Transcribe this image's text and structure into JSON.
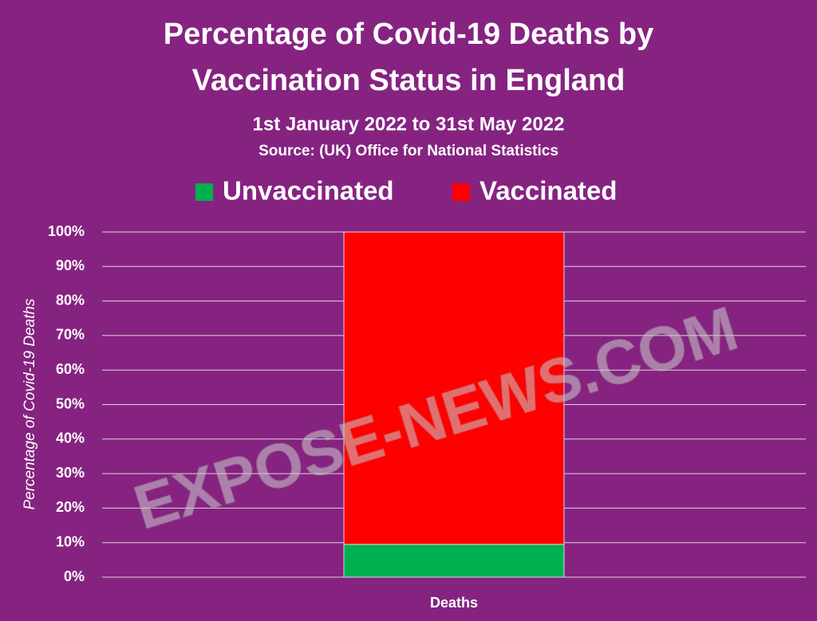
{
  "chart_data": {
    "type": "stacked-bar",
    "title": [
      "Percentage of Covid-19 Deaths by",
      "Vaccination Status in England"
    ],
    "subtitle": "1st January 2022 to 31st May 2022",
    "source": "Source:  (UK) Office for National Statistics",
    "y_label": "Percentage of Covid-19 Deaths",
    "categories": [
      "Deaths"
    ],
    "series": [
      {
        "name": "Unvaccinated",
        "color": "#00b050",
        "values": [
          9.5
        ]
      },
      {
        "name": "Vaccinated",
        "color": "#ff0000",
        "values": [
          90.5
        ]
      }
    ],
    "ylim": [
      0,
      100
    ],
    "yticks": [
      {
        "value": 0,
        "label": "0%"
      },
      {
        "value": 10,
        "label": "10%"
      },
      {
        "value": 20,
        "label": "20%"
      },
      {
        "value": 30,
        "label": "30%"
      },
      {
        "value": 40,
        "label": "40%"
      },
      {
        "value": 50,
        "label": "50%"
      },
      {
        "value": 60,
        "label": "60%"
      },
      {
        "value": 70,
        "label": "70%"
      },
      {
        "value": 80,
        "label": "80%"
      },
      {
        "value": 90,
        "label": "90%"
      },
      {
        "value": 100,
        "label": "100%"
      }
    ],
    "grid": true,
    "watermark": "EXPOSE-NEWS.COM"
  }
}
